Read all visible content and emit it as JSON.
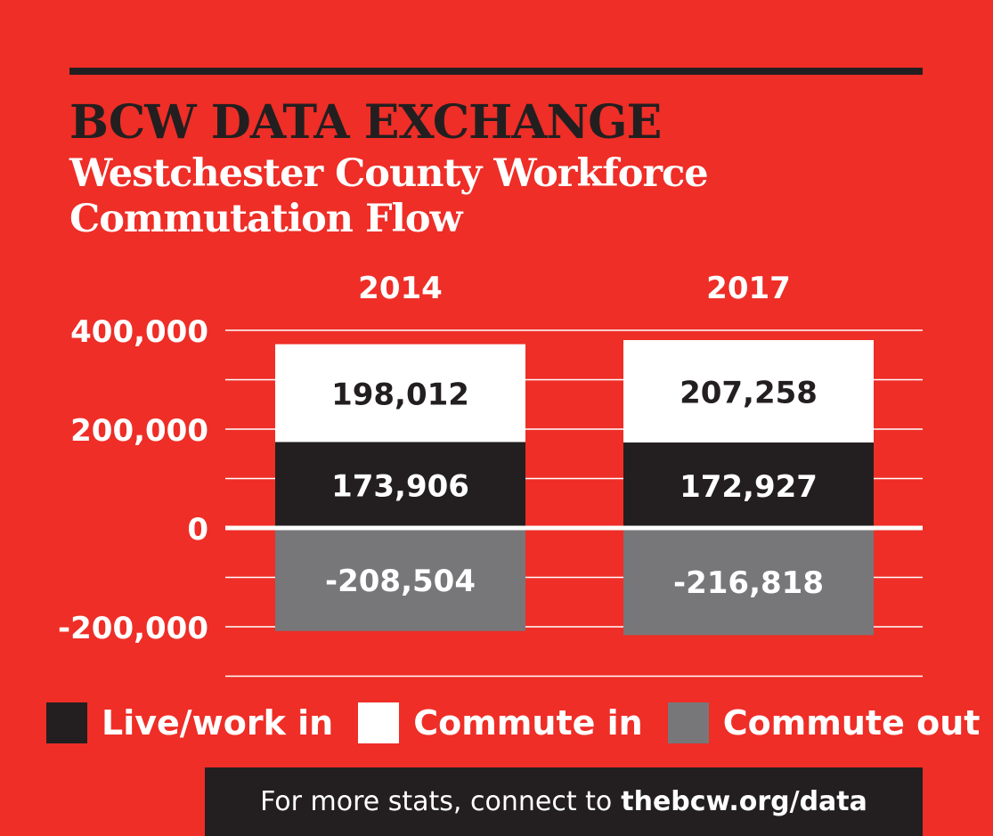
{
  "header": {
    "brand": "BCW DATA EXCHANGE",
    "title": "Westchester County Workforce Commutation Flow"
  },
  "colors": {
    "background": "#ee2e27",
    "live_work_in": "#231f20",
    "commute_in": "#ffffff",
    "commute_out": "#77777a",
    "text_dark": "#231f20",
    "text_light": "#ffffff"
  },
  "chart_data": {
    "type": "bar",
    "stacked": true,
    "categories": [
      "2014",
      "2017"
    ],
    "series": [
      {
        "name": "Live/work in",
        "values": [
          173906,
          172927
        ],
        "labels": [
          "173,906",
          "172,927"
        ]
      },
      {
        "name": "Commute in",
        "values": [
          198012,
          207258
        ],
        "labels": [
          "198,012",
          "207,258"
        ]
      },
      {
        "name": "Commute out",
        "values": [
          -208504,
          -216818
        ],
        "labels": [
          "-208,504",
          "-216,818"
        ]
      }
    ],
    "y_ticks": [
      400000,
      200000,
      0,
      -200000
    ],
    "y_tick_labels": [
      "400,000",
      "200,000",
      "0",
      "-200,000"
    ],
    "ylim": [
      -300000,
      400000
    ],
    "grid": true,
    "legend": "bottom"
  },
  "legend": {
    "items": [
      {
        "label": "Live/work in",
        "color": "#231f20"
      },
      {
        "label": "Commute in",
        "color": "#ffffff"
      },
      {
        "label": "Commute out",
        "color": "#77777a"
      }
    ]
  },
  "footer": {
    "text": "For more stats, connect to",
    "link": "thebcw.org/data"
  }
}
